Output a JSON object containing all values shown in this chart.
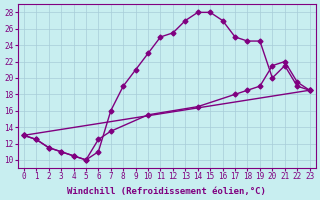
{
  "xlabel": "Windchill (Refroidissement éolien,°C)",
  "bg_color": "#c8eef0",
  "line_color": "#800080",
  "grid_color": "#a8ccd8",
  "xmin": -0.5,
  "xmax": 23.5,
  "ymin": 9,
  "ymax": 29,
  "yticks": [
    10,
    12,
    14,
    16,
    18,
    20,
    22,
    24,
    26,
    28
  ],
  "xticks": [
    0,
    1,
    2,
    3,
    4,
    5,
    6,
    7,
    8,
    9,
    10,
    11,
    12,
    13,
    14,
    15,
    16,
    17,
    18,
    19,
    20,
    21,
    22,
    23
  ],
  "line1_x": [
    0,
    1,
    2,
    3,
    4,
    5,
    6,
    7,
    8,
    9,
    10,
    11,
    12,
    13,
    14,
    15,
    16,
    17,
    18,
    19,
    20,
    21,
    22,
    23
  ],
  "line1_y": [
    13.0,
    12.5,
    11.5,
    11.0,
    10.5,
    10.0,
    11.0,
    16.0,
    19.0,
    21.0,
    23.0,
    25.0,
    25.5,
    27.0,
    28.0,
    28.0,
    27.0,
    25.0,
    24.5,
    24.5,
    20.0,
    21.5,
    19.0,
    18.5
  ],
  "line2_x": [
    0,
    1,
    2,
    3,
    4,
    5,
    6,
    7,
    10,
    14,
    17,
    18,
    19,
    20,
    21,
    22,
    23
  ],
  "line2_y": [
    13.0,
    12.5,
    11.5,
    11.0,
    10.5,
    10.0,
    12.5,
    13.5,
    15.5,
    16.5,
    18.0,
    18.5,
    19.0,
    21.5,
    22.0,
    19.5,
    18.5
  ],
  "line3_x": [
    0,
    23
  ],
  "line3_y": [
    13.0,
    18.5
  ],
  "marker": "D",
  "markersize": 2.5,
  "linewidth": 1.0,
  "tick_fontsize": 5.5,
  "label_fontsize": 6.5
}
